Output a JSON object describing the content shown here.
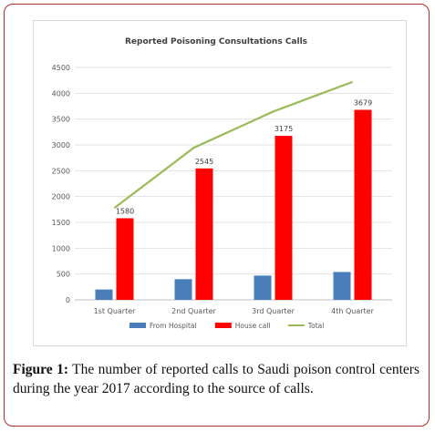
{
  "chart_data": {
    "type": "bar",
    "title": "Reported Poisoning Consultations Calls",
    "categories": [
      "1st Quarter",
      "2nd Quarter",
      "3rd Quarter",
      "4th Quarter"
    ],
    "series": [
      {
        "name": "From Hospital",
        "kind": "bar",
        "color": "#4a7ebb",
        "values": [
          200,
          400,
          470,
          540
        ]
      },
      {
        "name": "House call",
        "kind": "bar",
        "color": "#ff0000",
        "values": [
          1580,
          2545,
          3175,
          3679
        ],
        "data_labels": [
          "1580",
          "2545",
          "3175",
          "3679"
        ]
      },
      {
        "name": "Total",
        "kind": "line",
        "color": "#9bbb59",
        "values": [
          1780,
          2945,
          3645,
          4219
        ]
      }
    ],
    "ylim": [
      0,
      4500
    ],
    "yticks": [
      "0",
      "500",
      "1000",
      "1500",
      "2000",
      "2500",
      "3000",
      "3500",
      "4000",
      "4500"
    ],
    "grid": true,
    "legend_position": "bottom"
  },
  "caption": {
    "label": "Figure 1:",
    "text": " The number of reported calls to Saudi poison control centers during the year 2017 according to the source of calls."
  }
}
